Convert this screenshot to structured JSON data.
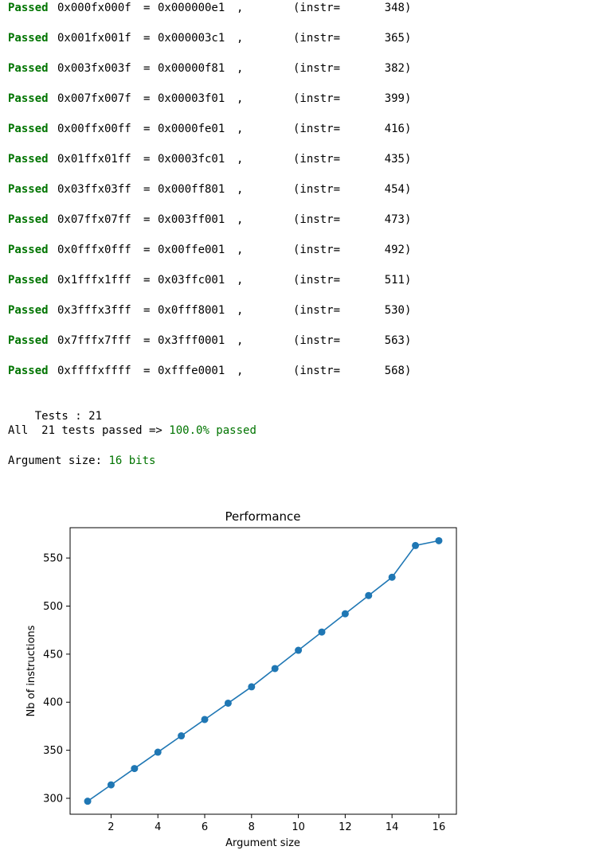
{
  "output": {
    "passed_label": "Passed",
    "instr_label": "(instr=",
    "rows": [
      {
        "arg": "0x000fx000f",
        "result": "0x000000e1",
        "instr": "348"
      },
      {
        "arg": "0x001fx001f",
        "result": "0x000003c1",
        "instr": "365"
      },
      {
        "arg": "0x003fx003f",
        "result": "0x00000f81",
        "instr": "382"
      },
      {
        "arg": "0x007fx007f",
        "result": "0x00003f01",
        "instr": "399"
      },
      {
        "arg": "0x00ffx00ff",
        "result": "0x0000fe01",
        "instr": "416"
      },
      {
        "arg": "0x01ffx01ff",
        "result": "0x0003fc01",
        "instr": "435"
      },
      {
        "arg": "0x03ffx03ff",
        "result": "0x000ff801",
        "instr": "454"
      },
      {
        "arg": "0x07ffx07ff",
        "result": "0x003ff001",
        "instr": "473"
      },
      {
        "arg": "0x0fffx0fff",
        "result": "0x00ffe001",
        "instr": "492"
      },
      {
        "arg": "0x1fffx1fff",
        "result": "0x03ffc001",
        "instr": "511"
      },
      {
        "arg": "0x3fffx3fff",
        "result": "0x0fff8001",
        "instr": "530"
      },
      {
        "arg": "0x7fffx7fff",
        "result": "0x3fff0001",
        "instr": "563"
      },
      {
        "arg": "0xffffxffff",
        "result": "0xfffe0001",
        "instr": "568"
      }
    ],
    "tests_line": "Tests : 21",
    "summary_prefix": "All  21 tests passed => ",
    "summary_value": "100.0% passed",
    "argsize_prefix": "Argument size: ",
    "argsize_value": "16 bits",
    "colors": {
      "passed": "#007400",
      "line": "#1f77b4"
    }
  },
  "chart_data": {
    "type": "line",
    "title": "Performance",
    "xlabel": "Argument size",
    "ylabel": "Nb of instructions",
    "x": [
      1,
      2,
      3,
      4,
      5,
      6,
      7,
      8,
      9,
      10,
      11,
      12,
      13,
      14,
      15,
      16
    ],
    "values": [
      297,
      314,
      331,
      348,
      365,
      382,
      399,
      416,
      435,
      454,
      473,
      492,
      511,
      530,
      563,
      568
    ],
    "xlim": [
      0.25,
      16.75
    ],
    "ylim": [
      283.45,
      581.55
    ],
    "xticks": [
      2,
      4,
      6,
      8,
      10,
      12,
      14,
      16
    ],
    "yticks": [
      300,
      350,
      400,
      450,
      500,
      550
    ],
    "xtick_labels": [
      "2",
      "4",
      "6",
      "8",
      "10",
      "12",
      "14",
      "16"
    ],
    "ytick_labels": [
      "300",
      "350",
      "400",
      "450",
      "500",
      "550"
    ],
    "grid": false,
    "marker": "circle",
    "color": "#1f77b4"
  }
}
